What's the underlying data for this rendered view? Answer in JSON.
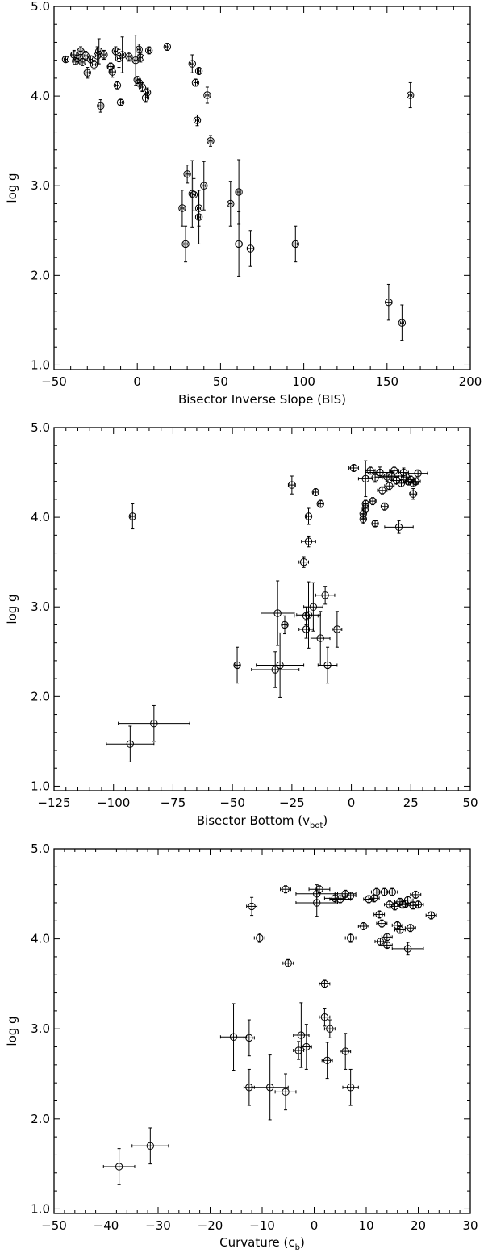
{
  "chart_data": [
    {
      "type": "scatter",
      "panel": "top",
      "xlabel": "Bisector Inverse Slope (BIS)",
      "xlabel_main": "Bisector Inverse Slope (BIS)",
      "xlabel_sub": "",
      "xlabel_tail": "",
      "ylabel": "log g",
      "xlim": [
        -50,
        200
      ],
      "ylim": [
        0.95,
        5.0
      ],
      "xticks": [
        -50,
        0,
        50,
        100,
        150,
        200
      ],
      "xtick_labels": [
        "−50",
        "0",
        "50",
        "100",
        "150",
        "200"
      ],
      "yticks": [
        1,
        2,
        3,
        4,
        5
      ],
      "ytick_labels": [
        "1.0",
        "2.0",
        "3.0",
        "4.0",
        "5.0"
      ],
      "points": [
        {
          "x": -43,
          "y": 4.41,
          "xe": 1,
          "ye": 0.03
        },
        {
          "x": -38,
          "y": 4.46,
          "xe": 1.5,
          "ye": 0.05
        },
        {
          "x": -37,
          "y": 4.39,
          "xe": 1,
          "ye": 0.04
        },
        {
          "x": -36,
          "y": 4.42,
          "xe": 1,
          "ye": 0.04
        },
        {
          "x": -34,
          "y": 4.5,
          "xe": 1,
          "ye": 0.05
        },
        {
          "x": -33,
          "y": 4.38,
          "xe": 1,
          "ye": 0.04
        },
        {
          "x": -31,
          "y": 4.45,
          "xe": 1,
          "ye": 0.05
        },
        {
          "x": -30,
          "y": 4.26,
          "xe": 1,
          "ye": 0.06
        },
        {
          "x": -28,
          "y": 4.41,
          "xe": 1,
          "ye": 0.04
        },
        {
          "x": -26,
          "y": 4.35,
          "xe": 1,
          "ye": 0.05
        },
        {
          "x": -24,
          "y": 4.45,
          "xe": 1,
          "ye": 0.1
        },
        {
          "x": -23,
          "y": 4.5,
          "xe": 1,
          "ye": 0.14
        },
        {
          "x": -22,
          "y": 3.89,
          "xe": 1,
          "ye": 0.07
        },
        {
          "x": -20,
          "y": 4.46,
          "xe": 1,
          "ye": 0.05
        },
        {
          "x": -16,
          "y": 4.33,
          "xe": 1.5,
          "ye": 0.04
        },
        {
          "x": -15,
          "y": 4.27,
          "xe": 1.5,
          "ye": 0.06
        },
        {
          "x": -13,
          "y": 4.5,
          "xe": 1,
          "ye": 0.05
        },
        {
          "x": -12,
          "y": 4.12,
          "xe": 1,
          "ye": 0.04
        },
        {
          "x": -11,
          "y": 4.42,
          "xe": 1,
          "ye": 0.1
        },
        {
          "x": -10,
          "y": 3.93,
          "xe": 1,
          "ye": 0.03
        },
        {
          "x": -9,
          "y": 4.46,
          "xe": 1,
          "ye": 0.2
        },
        {
          "x": -5,
          "y": 4.44,
          "xe": 1,
          "ye": 0.05
        },
        {
          "x": -1,
          "y": 4.4,
          "xe": 1,
          "ye": 0.28
        },
        {
          "x": 0,
          "y": 4.18,
          "xe": 1,
          "ye": 0.04
        },
        {
          "x": 1,
          "y": 4.15,
          "xe": 1,
          "ye": 0.04
        },
        {
          "x": 1,
          "y": 4.52,
          "xe": 1,
          "ye": 0.06
        },
        {
          "x": 2,
          "y": 4.43,
          "xe": 1,
          "ye": 0.05
        },
        {
          "x": 3,
          "y": 4.1,
          "xe": 1,
          "ye": 0.05
        },
        {
          "x": 5,
          "y": 3.98,
          "xe": 1,
          "ye": 0.05
        },
        {
          "x": 6,
          "y": 4.04,
          "xe": 1,
          "ye": 0.05
        },
        {
          "x": 7,
          "y": 4.51,
          "xe": 1,
          "ye": 0.04
        },
        {
          "x": 18,
          "y": 4.55,
          "xe": 1,
          "ye": 0.04
        },
        {
          "x": 33,
          "y": 4.36,
          "xe": 1,
          "ye": 0.1
        },
        {
          "x": 35,
          "y": 4.15,
          "xe": 1,
          "ye": 0.04
        },
        {
          "x": 36,
          "y": 3.73,
          "xe": 1,
          "ye": 0.06
        },
        {
          "x": 37,
          "y": 4.28,
          "xe": 1,
          "ye": 0.04
        },
        {
          "x": 42,
          "y": 4.01,
          "xe": 1,
          "ye": 0.09
        },
        {
          "x": 44,
          "y": 3.5,
          "xe": 1,
          "ye": 0.06
        },
        {
          "x": 27,
          "y": 2.75,
          "xe": 1,
          "ye": 0.2
        },
        {
          "x": 29,
          "y": 2.35,
          "xe": 1,
          "ye": 0.2
        },
        {
          "x": 30,
          "y": 3.13,
          "xe": 1,
          "ye": 0.1
        },
        {
          "x": 33,
          "y": 2.91,
          "xe": 1,
          "ye": 0.37
        },
        {
          "x": 34,
          "y": 2.9,
          "xe": 1,
          "ye": 0.18
        },
        {
          "x": 37,
          "y": 2.75,
          "xe": 1,
          "ye": 0.2
        },
        {
          "x": 37,
          "y": 2.65,
          "xe": 1,
          "ye": 0.3
        },
        {
          "x": 40,
          "y": 3.0,
          "xe": 1,
          "ye": 0.27
        },
        {
          "x": 56,
          "y": 2.8,
          "xe": 1,
          "ye": 0.25
        },
        {
          "x": 61,
          "y": 2.93,
          "xe": 1,
          "ye": 0.36
        },
        {
          "x": 61,
          "y": 2.35,
          "xe": 2,
          "ye": 0.36
        },
        {
          "x": 68,
          "y": 2.3,
          "xe": 2,
          "ye": 0.2
        },
        {
          "x": 95,
          "y": 2.35,
          "xe": 1,
          "ye": 0.2
        },
        {
          "x": 151,
          "y": 1.7,
          "xe": 2,
          "ye": 0.2
        },
        {
          "x": 159,
          "y": 1.47,
          "xe": 1,
          "ye": 0.2
        },
        {
          "x": 164,
          "y": 4.01,
          "xe": 1,
          "ye": 0.14
        }
      ]
    },
    {
      "type": "scatter",
      "panel": "middle",
      "xlabel": "Bisector Bottom (v_bot)",
      "xlabel_main": "Bisector Bottom (v",
      "xlabel_sub": "bot",
      "xlabel_tail": ")",
      "ylabel": "log g",
      "xlim": [
        -125,
        50
      ],
      "ylim": [
        0.95,
        5.0
      ],
      "xticks": [
        -125,
        -100,
        -75,
        -50,
        -25,
        0,
        25,
        50
      ],
      "xtick_labels": [
        "−125",
        "−100",
        "−75",
        "−50",
        "−25",
        "0",
        "25",
        "50"
      ],
      "yticks": [
        1,
        2,
        3,
        4,
        5
      ],
      "ytick_labels": [
        "1.0",
        "2.0",
        "3.0",
        "4.0",
        "5.0"
      ],
      "points": [
        {
          "x": -92,
          "y": 4.01,
          "xe": 1,
          "ye": 0.14
        },
        {
          "x": -93,
          "y": 1.47,
          "xe": 10,
          "ye": 0.2
        },
        {
          "x": -83,
          "y": 1.7,
          "xe": 15,
          "ye": 0.2
        },
        {
          "x": -48,
          "y": 2.35,
          "xe": 1,
          "ye": 0.2
        },
        {
          "x": -32,
          "y": 2.3,
          "xe": 10,
          "ye": 0.2
        },
        {
          "x": -30,
          "y": 2.35,
          "xe": 10,
          "ye": 0.36
        },
        {
          "x": -31,
          "y": 2.93,
          "xe": 7,
          "ye": 0.36
        },
        {
          "x": -28,
          "y": 2.8,
          "xe": 1,
          "ye": 0.1
        },
        {
          "x": -25,
          "y": 4.36,
          "xe": 1.5,
          "ye": 0.1
        },
        {
          "x": -20,
          "y": 3.5,
          "xe": 2,
          "ye": 0.06
        },
        {
          "x": -19,
          "y": 2.75,
          "xe": 3,
          "ye": 0.1
        },
        {
          "x": -19,
          "y": 2.9,
          "xe": 5,
          "ye": 0.1
        },
        {
          "x": -18,
          "y": 3.73,
          "xe": 3,
          "ye": 0.06
        },
        {
          "x": -18,
          "y": 4.01,
          "xe": 1,
          "ye": 0.09
        },
        {
          "x": -18,
          "y": 2.91,
          "xe": 5,
          "ye": 0.37
        },
        {
          "x": -16,
          "y": 3.0,
          "xe": 4,
          "ye": 0.27
        },
        {
          "x": -15,
          "y": 4.28,
          "xe": 1,
          "ye": 0.04
        },
        {
          "x": -13,
          "y": 4.15,
          "xe": 1,
          "ye": 0.04
        },
        {
          "x": -13,
          "y": 2.65,
          "xe": 4,
          "ye": 0.3
        },
        {
          "x": -11,
          "y": 3.13,
          "xe": 4,
          "ye": 0.1
        },
        {
          "x": -10,
          "y": 2.35,
          "xe": 4,
          "ye": 0.2
        },
        {
          "x": -6,
          "y": 2.75,
          "xe": 2,
          "ye": 0.2
        },
        {
          "x": 1,
          "y": 4.55,
          "xe": 2,
          "ye": 0.04
        },
        {
          "x": 5,
          "y": 3.98,
          "xe": 1,
          "ye": 0.05
        },
        {
          "x": 5,
          "y": 4.04,
          "xe": 1,
          "ye": 0.05
        },
        {
          "x": 6,
          "y": 4.1,
          "xe": 1,
          "ye": 0.05
        },
        {
          "x": 6,
          "y": 4.15,
          "xe": 1,
          "ye": 0.04
        },
        {
          "x": 6,
          "y": 4.43,
          "xe": 3,
          "ye": 0.2
        },
        {
          "x": 8,
          "y": 4.52,
          "xe": 2,
          "ye": 0.04
        },
        {
          "x": 9,
          "y": 4.18,
          "xe": 1,
          "ye": 0.04
        },
        {
          "x": 10,
          "y": 3.93,
          "xe": 1,
          "ye": 0.03
        },
        {
          "x": 10,
          "y": 4.44,
          "xe": 3,
          "ye": 0.05
        },
        {
          "x": 12,
          "y": 4.5,
          "xe": 6,
          "ye": 0.06
        },
        {
          "x": 13,
          "y": 4.3,
          "xe": 2,
          "ye": 0.04
        },
        {
          "x": 14,
          "y": 4.12,
          "xe": 1.5,
          "ye": 0.04
        },
        {
          "x": 15,
          "y": 4.45,
          "xe": 5,
          "ye": 0.05
        },
        {
          "x": 16,
          "y": 4.35,
          "xe": 2,
          "ye": 0.04
        },
        {
          "x": 17,
          "y": 4.46,
          "xe": 5,
          "ye": 0.05
        },
        {
          "x": 18,
          "y": 4.52,
          "xe": 2,
          "ye": 0.04
        },
        {
          "x": 19,
          "y": 4.41,
          "xe": 2,
          "ye": 0.04
        },
        {
          "x": 20,
          "y": 3.89,
          "xe": 6,
          "ye": 0.07
        },
        {
          "x": 21,
          "y": 4.38,
          "xe": 2,
          "ye": 0.04
        },
        {
          "x": 22,
          "y": 4.5,
          "xe": 2,
          "ye": 0.05
        },
        {
          "x": 23,
          "y": 4.45,
          "xe": 2,
          "ye": 0.04
        },
        {
          "x": 24,
          "y": 4.4,
          "xe": 2,
          "ye": 0.04
        },
        {
          "x": 25,
          "y": 4.42,
          "xe": 2,
          "ye": 0.04
        },
        {
          "x": 26,
          "y": 4.38,
          "xe": 2,
          "ye": 0.04
        },
        {
          "x": 26,
          "y": 4.26,
          "xe": 1.5,
          "ye": 0.06
        },
        {
          "x": 27,
          "y": 4.4,
          "xe": 2,
          "ye": 0.04
        },
        {
          "x": 28,
          "y": 4.49,
          "xe": 4,
          "ye": 0.04
        }
      ]
    },
    {
      "type": "scatter",
      "panel": "bottom",
      "xlabel": "Curvature (c_b)",
      "xlabel_main": "Curvature (c",
      "xlabel_sub": "b",
      "xlabel_tail": ")",
      "ylabel": "log g",
      "xlim": [
        -50,
        30
      ],
      "ylim": [
        0.95,
        5.0
      ],
      "xticks": [
        -50,
        -40,
        -30,
        -20,
        -10,
        0,
        10,
        20,
        30
      ],
      "xtick_labels": [
        "−50",
        "−40",
        "−30",
        "−20",
        "−10",
        "0",
        "10",
        "20",
        "30"
      ],
      "yticks": [
        1,
        2,
        3,
        4,
        5
      ],
      "ytick_labels": [
        "1.0",
        "2.0",
        "3.0",
        "4.0",
        "5.0"
      ],
      "points": [
        {
          "x": -37.5,
          "y": 1.47,
          "xe": 3,
          "ye": 0.2
        },
        {
          "x": -31.5,
          "y": 1.7,
          "xe": 3.5,
          "ye": 0.2
        },
        {
          "x": -15.5,
          "y": 2.91,
          "xe": 2.5,
          "ye": 0.37
        },
        {
          "x": -12.5,
          "y": 2.9,
          "xe": 1,
          "ye": 0.2
        },
        {
          "x": -12.5,
          "y": 2.35,
          "xe": 1,
          "ye": 0.2
        },
        {
          "x": -12,
          "y": 4.36,
          "xe": 1,
          "ye": 0.1
        },
        {
          "x": -10.5,
          "y": 4.01,
          "xe": 1,
          "ye": 0.05
        },
        {
          "x": -8.5,
          "y": 2.35,
          "xe": 3.5,
          "ye": 0.36
        },
        {
          "x": -5.5,
          "y": 2.3,
          "xe": 2,
          "ye": 0.2
        },
        {
          "x": -5.5,
          "y": 4.55,
          "xe": 1,
          "ye": 0.04
        },
        {
          "x": -5,
          "y": 3.73,
          "xe": 1,
          "ye": 0.04
        },
        {
          "x": -3,
          "y": 2.76,
          "xe": 1,
          "ye": 0.1
        },
        {
          "x": -2.5,
          "y": 2.93,
          "xe": 1.5,
          "ye": 0.36
        },
        {
          "x": -1.5,
          "y": 2.8,
          "xe": 1,
          "ye": 0.25
        },
        {
          "x": 0.5,
          "y": 4.5,
          "xe": 4,
          "ye": 0.1
        },
        {
          "x": 0.5,
          "y": 4.4,
          "xe": 4,
          "ye": 0.15
        },
        {
          "x": 1,
          "y": 4.55,
          "xe": 2,
          "ye": 0.04
        },
        {
          "x": 2,
          "y": 3.5,
          "xe": 1,
          "ye": 0.04
        },
        {
          "x": 2,
          "y": 3.13,
          "xe": 1,
          "ye": 0.1
        },
        {
          "x": 2.5,
          "y": 2.65,
          "xe": 1,
          "ye": 0.2
        },
        {
          "x": 3,
          "y": 3.0,
          "xe": 1,
          "ye": 0.1
        },
        {
          "x": 4,
          "y": 4.45,
          "xe": 2,
          "ye": 0.05
        },
        {
          "x": 5,
          "y": 4.44,
          "xe": 2,
          "ye": 0.04
        },
        {
          "x": 6,
          "y": 4.5,
          "xe": 2,
          "ye": 0.04
        },
        {
          "x": 6,
          "y": 2.75,
          "xe": 1,
          "ye": 0.2
        },
        {
          "x": 7,
          "y": 4.01,
          "xe": 1,
          "ye": 0.05
        },
        {
          "x": 7,
          "y": 2.35,
          "xe": 1.5,
          "ye": 0.2
        },
        {
          "x": 7,
          "y": 4.48,
          "xe": 1,
          "ye": 0.04
        },
        {
          "x": 9.5,
          "y": 4.14,
          "xe": 1,
          "ye": 0.04
        },
        {
          "x": 10.5,
          "y": 4.44,
          "xe": 1,
          "ye": 0.04
        },
        {
          "x": 11.5,
          "y": 4.45,
          "xe": 1,
          "ye": 0.04
        },
        {
          "x": 12,
          "y": 4.52,
          "xe": 1,
          "ye": 0.04
        },
        {
          "x": 12.5,
          "y": 4.27,
          "xe": 1,
          "ye": 0.04
        },
        {
          "x": 12.7,
          "y": 3.97,
          "xe": 1,
          "ye": 0.04
        },
        {
          "x": 13,
          "y": 4.17,
          "xe": 1,
          "ye": 0.04
        },
        {
          "x": 13.5,
          "y": 4.52,
          "xe": 1,
          "ye": 0.04
        },
        {
          "x": 14,
          "y": 4.02,
          "xe": 1,
          "ye": 0.04
        },
        {
          "x": 14,
          "y": 3.93,
          "xe": 1,
          "ye": 0.03
        },
        {
          "x": 14.5,
          "y": 4.38,
          "xe": 1,
          "ye": 0.04
        },
        {
          "x": 15,
          "y": 4.52,
          "xe": 1,
          "ye": 0.04
        },
        {
          "x": 15.5,
          "y": 4.36,
          "xe": 1,
          "ye": 0.04
        },
        {
          "x": 16,
          "y": 4.15,
          "xe": 1,
          "ye": 0.04
        },
        {
          "x": 16.5,
          "y": 4.1,
          "xe": 1,
          "ye": 0.04
        },
        {
          "x": 16.5,
          "y": 4.41,
          "xe": 1,
          "ye": 0.04
        },
        {
          "x": 17,
          "y": 4.38,
          "xe": 1,
          "ye": 0.04
        },
        {
          "x": 17.5,
          "y": 4.39,
          "xe": 1,
          "ye": 0.04
        },
        {
          "x": 18,
          "y": 4.43,
          "xe": 1,
          "ye": 0.04
        },
        {
          "x": 18,
          "y": 3.89,
          "xe": 3,
          "ye": 0.07
        },
        {
          "x": 18.5,
          "y": 4.12,
          "xe": 1,
          "ye": 0.04
        },
        {
          "x": 19,
          "y": 4.37,
          "xe": 1,
          "ye": 0.04
        },
        {
          "x": 19.5,
          "y": 4.49,
          "xe": 1,
          "ye": 0.04
        },
        {
          "x": 20,
          "y": 4.38,
          "xe": 1,
          "ye": 0.04
        },
        {
          "x": 22.5,
          "y": 4.26,
          "xe": 1,
          "ye": 0.04
        }
      ]
    }
  ]
}
